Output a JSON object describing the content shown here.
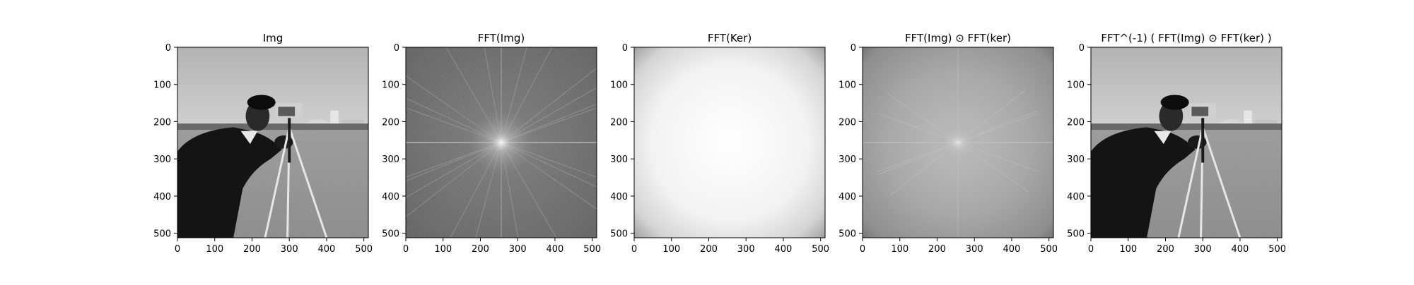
{
  "chart_data": [
    {
      "type": "heatmap",
      "title": "Img",
      "xlabel": "",
      "ylabel": "",
      "x_ticks": [
        0,
        100,
        200,
        300,
        400,
        500
      ],
      "y_ticks": [
        0,
        100,
        200,
        300,
        400,
        500
      ],
      "xlim": [
        0,
        512
      ],
      "ylim": [
        512,
        0
      ],
      "grid": false,
      "colormap": "gray",
      "content": "photograph"
    },
    {
      "type": "heatmap",
      "title": "FFT(Img)",
      "xlabel": "",
      "ylabel": "",
      "x_ticks": [
        0,
        100,
        200,
        300,
        400,
        500
      ],
      "y_ticks": [
        0,
        100,
        200,
        300,
        400,
        500
      ],
      "xlim": [
        0,
        512
      ],
      "ylim": [
        512,
        0
      ],
      "grid": false,
      "colormap": "gray",
      "content": "spectrum"
    },
    {
      "type": "heatmap",
      "title": "FFT(Ker)",
      "xlabel": "",
      "ylabel": "",
      "x_ticks": [
        0,
        100,
        200,
        300,
        400,
        500
      ],
      "y_ticks": [
        0,
        100,
        200,
        300,
        400,
        500
      ],
      "xlim": [
        0,
        512
      ],
      "ylim": [
        512,
        0
      ],
      "grid": false,
      "colormap": "gray",
      "content": "kernel"
    },
    {
      "type": "heatmap",
      "title": "FFT(Img) ⊙ FFT(ker)",
      "xlabel": "",
      "ylabel": "",
      "x_ticks": [
        0,
        100,
        200,
        300,
        400,
        500
      ],
      "y_ticks": [
        0,
        100,
        200,
        300,
        400,
        500
      ],
      "xlim": [
        0,
        512
      ],
      "ylim": [
        512,
        0
      ],
      "grid": false,
      "colormap": "gray",
      "content": "product"
    },
    {
      "type": "heatmap",
      "title": "FFT^(-1) ( FFT(Img) ⊙ FFT(ker) )",
      "xlabel": "",
      "ylabel": "",
      "x_ticks": [
        0,
        100,
        200,
        300,
        400,
        500
      ],
      "y_ticks": [
        0,
        100,
        200,
        300,
        400,
        500
      ],
      "xlim": [
        0,
        512
      ],
      "ylim": [
        512,
        0
      ],
      "grid": false,
      "colormap": "gray",
      "content": "photograph"
    }
  ]
}
